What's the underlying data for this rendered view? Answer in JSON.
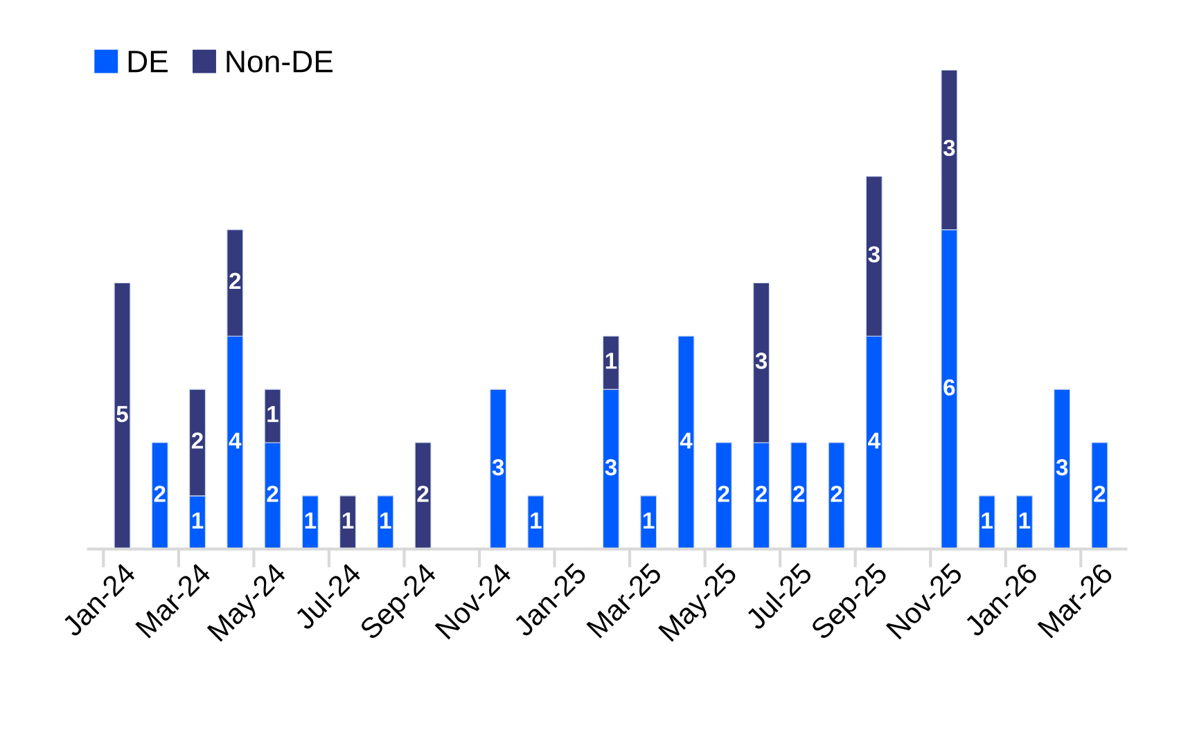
{
  "chart_data": {
    "type": "bar",
    "stacked": true,
    "data_labels": true,
    "legend": "top left",
    "grid": false,
    "categories": [
      "Jan-24",
      null,
      "Mar-24",
      null,
      "May-24",
      null,
      "Jul-24",
      null,
      "Sep-24",
      null,
      "Nov-24",
      null,
      "Jan-25",
      null,
      "Mar-25",
      null,
      "May-25",
      null,
      "Jul-25",
      null,
      "Sep-25",
      null,
      "Nov-25",
      null,
      "Jan-26",
      null,
      "Mar-26"
    ],
    "series": [
      {
        "name": "DE",
        "color": "#005cff",
        "values": [
          null,
          2,
          1,
          4,
          2,
          1,
          null,
          1,
          null,
          null,
          3,
          1,
          null,
          3,
          1,
          4,
          2,
          2,
          2,
          2,
          4,
          null,
          6,
          1,
          1,
          3,
          2
        ]
      },
      {
        "name": "Non-DE",
        "color": "#343a7c",
        "values": [
          5,
          null,
          2,
          2,
          1,
          null,
          1,
          null,
          2,
          null,
          null,
          null,
          null,
          1,
          null,
          null,
          null,
          3,
          null,
          null,
          3,
          null,
          3,
          null,
          null,
          null,
          null
        ]
      }
    ]
  }
}
